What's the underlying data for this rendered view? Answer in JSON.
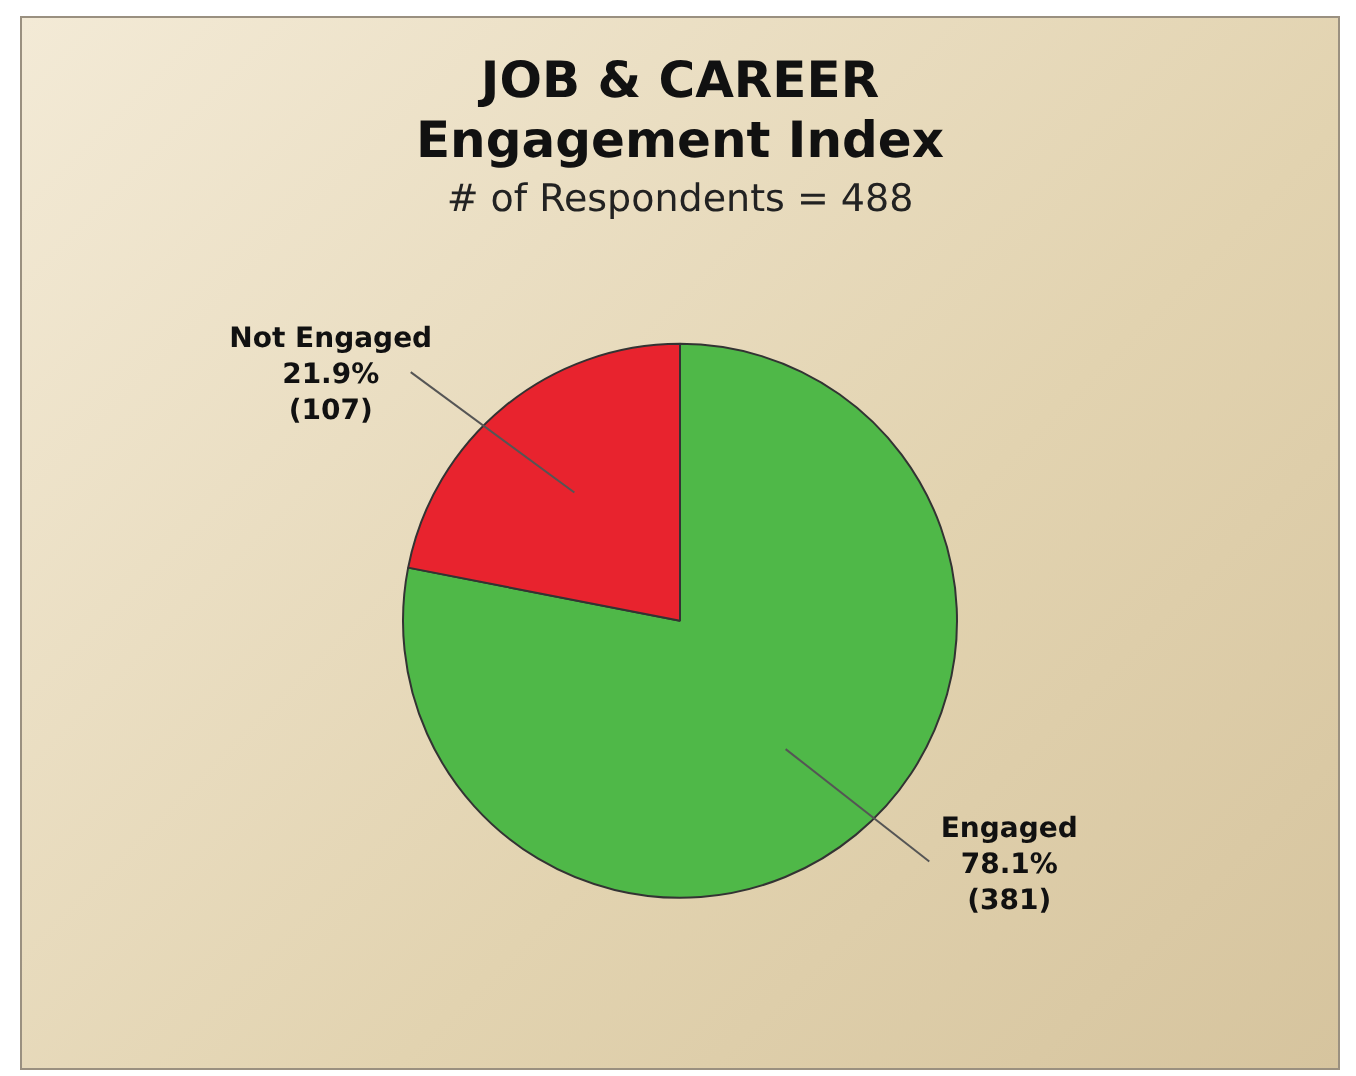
{
  "chart_data": {
    "type": "pie",
    "title": "JOB & CAREER\nEngagement Index",
    "subtitle": "# of Respondents = 488",
    "categories": [
      "Engaged",
      "Not Engaged"
    ],
    "values": [
      381,
      107
    ],
    "colors": [
      "#4fb848",
      "#e8232e"
    ],
    "value_labels": [
      "78.1%\n(381)",
      "21.9%\n(107)"
    ],
    "legend": false
  }
}
